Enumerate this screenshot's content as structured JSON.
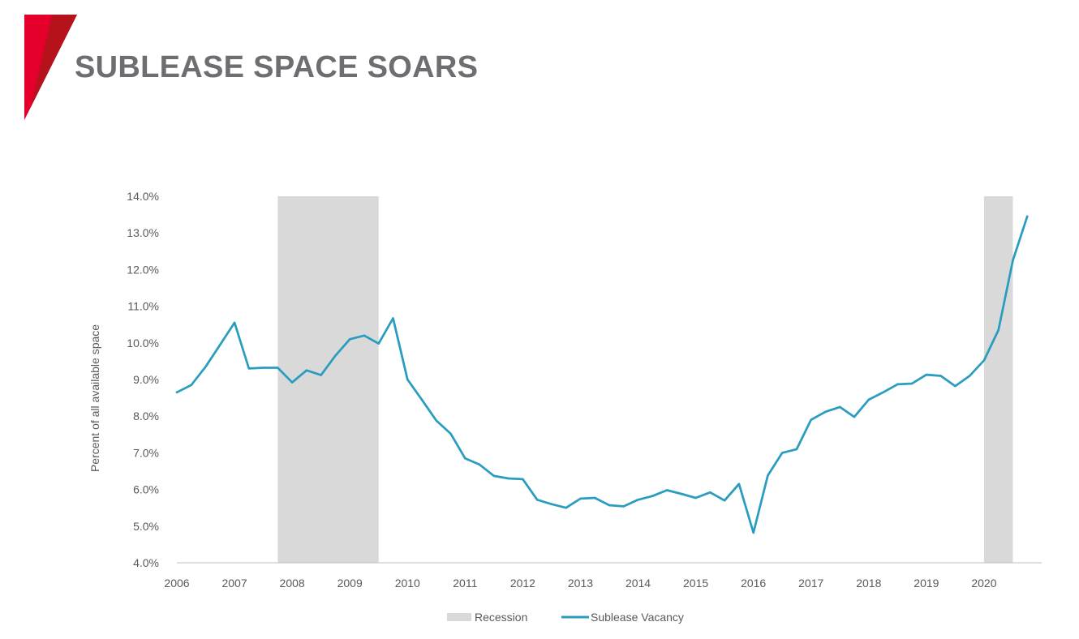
{
  "page": {
    "title": "SUBLEASE SPACE SOARS"
  },
  "colors": {
    "brand_red": "#e4002b",
    "brand_dark_red": "#b5121b",
    "title_gray": "#6d6e71",
    "recession_fill": "#d9d9d9",
    "line": "#2a9dbf",
    "axis": "#bfbfbf"
  },
  "chart_data": {
    "type": "line",
    "title": "",
    "xlabel": "",
    "ylabel": "Percent of all available space",
    "ylim": [
      4.0,
      14.0
    ],
    "y_ticks": [
      "4.0%",
      "5.0%",
      "6.0%",
      "7.0%",
      "8.0%",
      "9.0%",
      "10.0%",
      "11.0%",
      "12.0%",
      "13.0%",
      "14.0%"
    ],
    "x_ticks": [
      "2006",
      "2007",
      "2008",
      "2009",
      "2010",
      "2011",
      "2012",
      "2013",
      "2014",
      "2015",
      "2016",
      "2017",
      "2018",
      "2019",
      "2020"
    ],
    "xlim": [
      2006.0,
      2021.0
    ],
    "grid": false,
    "legend_position": "bottom",
    "recessions": [
      {
        "start": 2007.75,
        "end": 2009.5
      },
      {
        "start": 2020.0,
        "end": 2020.5
      }
    ],
    "series": [
      {
        "name": "Sublease Vacancy",
        "x": [
          2006.0,
          2006.25,
          2006.5,
          2006.75,
          2007.0,
          2007.25,
          2007.5,
          2007.75,
          2008.0,
          2008.25,
          2008.5,
          2008.75,
          2009.0,
          2009.25,
          2009.5,
          2009.75,
          2010.0,
          2010.25,
          2010.5,
          2010.75,
          2011.0,
          2011.25,
          2011.5,
          2011.75,
          2012.0,
          2012.25,
          2012.5,
          2012.75,
          2013.0,
          2013.25,
          2013.5,
          2013.75,
          2014.0,
          2014.25,
          2014.5,
          2014.75,
          2015.0,
          2015.25,
          2015.5,
          2015.75,
          2016.0,
          2016.25,
          2016.5,
          2016.75,
          2017.0,
          2017.25,
          2017.5,
          2017.75,
          2018.0,
          2018.25,
          2018.5,
          2018.75,
          2019.0,
          2019.25,
          2019.5,
          2019.75,
          2020.0,
          2020.25,
          2020.5,
          2020.75
        ],
        "values": [
          8.65,
          8.85,
          9.35,
          9.95,
          10.55,
          9.3,
          9.32,
          9.32,
          8.92,
          9.25,
          9.12,
          9.65,
          10.1,
          10.2,
          9.98,
          10.67,
          9.0,
          8.45,
          7.88,
          7.52,
          6.85,
          6.68,
          6.37,
          6.3,
          6.28,
          5.72,
          5.6,
          5.5,
          5.75,
          5.77,
          5.57,
          5.54,
          5.72,
          5.82,
          5.98,
          5.88,
          5.77,
          5.92,
          5.7,
          6.15,
          4.82,
          6.38,
          7.0,
          7.1,
          7.9,
          8.12,
          8.25,
          7.98,
          8.45,
          8.65,
          8.87,
          8.89,
          9.13,
          9.1,
          8.82,
          9.1,
          9.52,
          10.35,
          12.25,
          13.45
        ]
      }
    ],
    "legend": [
      "Recession",
      "Sublease Vacancy"
    ]
  }
}
